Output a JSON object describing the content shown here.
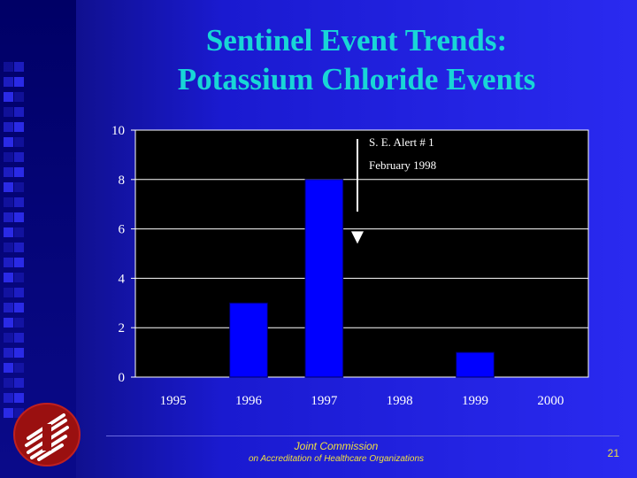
{
  "slide": {
    "title_line1": "Sentinel Event Trends:",
    "title_line2": "Potassium Chloride Events",
    "page_number": "21"
  },
  "footer": {
    "org_name": "Joint Commission",
    "org_sub": "on Accreditation of Healthcare Organizations"
  },
  "colors": {
    "title": "#18d6d6",
    "bar": "#0000ff",
    "plot_bg": "#000000",
    "footer_text": "#f0e040"
  },
  "chart_data": {
    "type": "bar",
    "categories": [
      "1995",
      "1996",
      "1997",
      "1998",
      "1999",
      "2000"
    ],
    "values": [
      0,
      3,
      8,
      0,
      1,
      0
    ],
    "ylim": [
      0,
      10
    ],
    "yticks": [
      0,
      2,
      4,
      6,
      8,
      10
    ],
    "grid": true,
    "annotation": {
      "line1": "S. E. Alert  # 1",
      "line2": "February 1998",
      "points_at": "1998"
    }
  }
}
